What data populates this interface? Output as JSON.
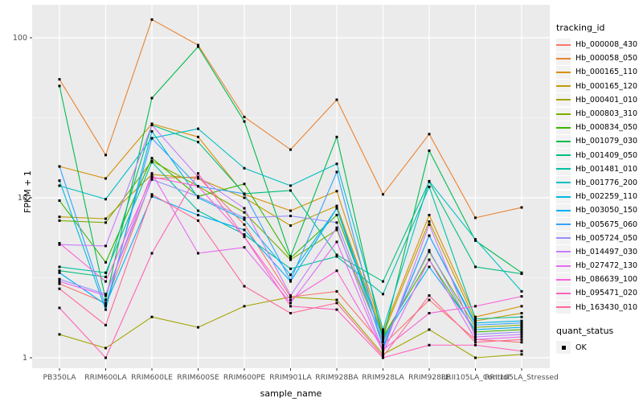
{
  "figure": {
    "background": "#FFFFFF",
    "panel_background": "#EBEBEB",
    "grid_color": "#FFFFFF",
    "tick_label_color": "#4D4D4D",
    "marker_color": "#000000"
  },
  "legend": {
    "color_title": "tracking_id",
    "shape_title": "quant_status",
    "shape_items": [
      {
        "label": "OK"
      }
    ]
  },
  "chart_data": {
    "type": "line",
    "title": "",
    "xlabel": "sample_name",
    "ylabel": "FPKM + 1",
    "y_scale": "log10",
    "ylim": [
      0.95,
      160
    ],
    "y_ticks": [
      1,
      10,
      100
    ],
    "grid": "on",
    "legend_position": "right",
    "marker": "black-square",
    "x_categories": [
      "PB350LA",
      "RRIM600LA",
      "RRIM600LE",
      "RRIM600SE",
      "RRIM600PE",
      "RRIM901LA",
      "RRIM928BA",
      "RRIM928LA",
      "RRIM928LE",
      "RRII105LA_Control",
      "RRII105LA_Stressed"
    ],
    "series": [
      {
        "name": "Hb_000008_430",
        "color": "#F8766D",
        "values": [
          2.9,
          2.2,
          13.2,
          13.5,
          6.8,
          2.4,
          2.6,
          1.2,
          2.3,
          1.3,
          1.25
        ]
      },
      {
        "name": "Hb_000058_050",
        "color": "#EA8331",
        "values": [
          55,
          18.5,
          130,
          90,
          32,
          20,
          41,
          10.5,
          25,
          7.5,
          8.7
        ]
      },
      {
        "name": "Hb_000165_110",
        "color": "#D89000",
        "values": [
          15.7,
          13.2,
          29,
          24,
          10.5,
          8.3,
          11,
          1.45,
          7.8,
          1.8,
          2.1
        ]
      },
      {
        "name": "Hb_000165_120",
        "color": "#C09B00",
        "values": [
          7.6,
          7.4,
          14,
          13.2,
          10,
          6.7,
          8.9,
          1.4,
          7.1,
          1.7,
          1.9
        ]
      },
      {
        "name": "Hb_000401_010",
        "color": "#A3A500",
        "values": [
          1.4,
          1.15,
          1.8,
          1.55,
          2.1,
          2.4,
          2.3,
          1.05,
          1.5,
          1.0,
          1.05
        ]
      },
      {
        "name": "Hb_000803_310",
        "color": "#7CAE00",
        "values": [
          7.2,
          7.0,
          17,
          11.8,
          8.1,
          4.1,
          6.3,
          1.28,
          4.6,
          1.55,
          1.6
        ]
      },
      {
        "name": "Hb_000834_050",
        "color": "#39B600",
        "values": [
          9.6,
          3.95,
          17.7,
          10.2,
          12.2,
          4.2,
          7.8,
          1.35,
          4.1,
          1.45,
          1.5
        ]
      },
      {
        "name": "Hb_001079_030",
        "color": "#00BB4E",
        "values": [
          50,
          2.3,
          42,
          88,
          30,
          4.3,
          24,
          1.3,
          19.7,
          5.4,
          3.4
        ]
      },
      {
        "name": "Hb_001409_050",
        "color": "#00BF7D",
        "values": [
          3.5,
          3.2,
          28.5,
          22.3,
          10.6,
          11.1,
          4.4,
          3.0,
          12.6,
          3.7,
          3.35
        ]
      },
      {
        "name": "Hb_001481_010",
        "color": "#00C1A3",
        "values": [
          3.7,
          3.4,
          16.7,
          8.3,
          5.9,
          3.6,
          4.3,
          2.5,
          11.7,
          1.75,
          1.8
        ]
      },
      {
        "name": "Hb_001776_200",
        "color": "#00BFC4",
        "values": [
          11.9,
          9.8,
          23.6,
          27,
          15.3,
          11.9,
          16.3,
          1.5,
          12.7,
          5.5,
          2.6
        ]
      },
      {
        "name": "Hb_002259_110",
        "color": "#00BAE0",
        "values": [
          12.8,
          2.0,
          26,
          10,
          7.3,
          3.3,
          8.6,
          1.18,
          5.8,
          1.65,
          1.7
        ]
      },
      {
        "name": "Hb_003050_150",
        "color": "#00B0F6",
        "values": [
          3.4,
          2.15,
          10.2,
          7.8,
          6.3,
          3.0,
          8.6,
          1.32,
          3.7,
          1.5,
          1.55
        ]
      },
      {
        "name": "Hb_005675_060",
        "color": "#35A2FF",
        "values": [
          15.7,
          2.1,
          23.5,
          11.8,
          10.6,
          3.05,
          14.5,
          1.15,
          5.8,
          1.6,
          1.65
        ]
      },
      {
        "name": "Hb_005724_050",
        "color": "#9590FF",
        "values": [
          3.1,
          2.5,
          13,
          10.2,
          7.5,
          7.7,
          7.0,
          1.25,
          4.7,
          1.4,
          1.45
        ]
      },
      {
        "name": "Hb_014497_030",
        "color": "#C77CFF",
        "values": [
          5.1,
          5.0,
          28.5,
          13.5,
          8.6,
          2.45,
          6.5,
          1.1,
          6.8,
          1.35,
          1.4
        ]
      },
      {
        "name": "Hb_027472_130",
        "color": "#E76BF3",
        "values": [
          3.0,
          2.45,
          14.2,
          4.5,
          4.9,
          2.2,
          5.3,
          1.08,
          4.1,
          1.3,
          1.35
        ]
      },
      {
        "name": "Hb_086639_100",
        "color": "#FA62DB",
        "values": [
          5.2,
          3.0,
          13.5,
          11.8,
          5.7,
          2.3,
          3.5,
          1.12,
          1.9,
          2.1,
          2.42
        ]
      },
      {
        "name": "Hb_095471_020",
        "color": "#FF62BC",
        "values": [
          2.05,
          1.0,
          4.5,
          14.2,
          5.7,
          2.1,
          2.0,
          1.0,
          1.2,
          1.2,
          1.1
        ]
      },
      {
        "name": "Hb_163430_010",
        "color": "#FF6A98",
        "values": [
          2.7,
          1.6,
          10.5,
          7.2,
          2.8,
          1.9,
          2.2,
          1.02,
          2.45,
          1.25,
          1.3
        ]
      }
    ],
    "quant_status_of_all_points": "OK"
  }
}
